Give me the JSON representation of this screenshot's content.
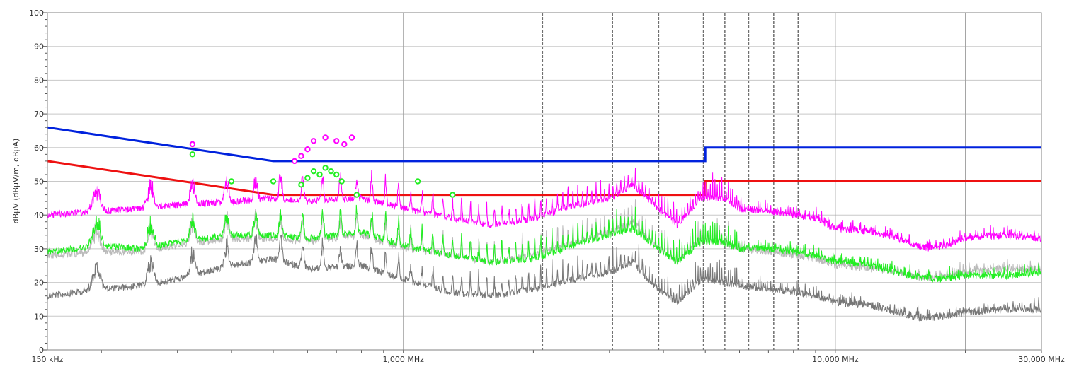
{
  "chart_data": {
    "type": "line",
    "title": "",
    "ylabel": "dBµV (dBµV/m, dBµA)",
    "xlabel": "",
    "x_scale": "log",
    "xlim_mhz": [
      0.15,
      30
    ],
    "ylim": [
      0,
      100
    ],
    "grid": true,
    "legend": "none",
    "y_ticks": [
      0,
      10,
      20,
      30,
      40,
      50,
      60,
      70,
      80,
      90,
      100
    ],
    "x_tick_labels": [
      {
        "mhz": 0.15,
        "label": "150 kHz"
      },
      {
        "mhz": 1,
        "label": "1,000 MHz"
      },
      {
        "mhz": 10,
        "label": "10,000 MHz"
      },
      {
        "mhz": 30,
        "label": "30,000 MHz"
      }
    ],
    "x_solid_grid_mhz": [
      1,
      10,
      20
    ],
    "x_dashed_markers_mhz": [
      2.1,
      3.05,
      3.9,
      4.95,
      5.55,
      6.3,
      7.2,
      8.2
    ],
    "limit_lines": [
      {
        "color": "#0022dd",
        "points": [
          [
            0.15,
            66
          ],
          [
            0.5,
            56
          ],
          [
            5,
            56
          ],
          [
            5,
            60
          ],
          [
            30,
            60
          ]
        ]
      },
      {
        "color": "#ee1111",
        "points": [
          [
            0.15,
            56
          ],
          [
            0.5,
            46
          ],
          [
            5,
            46
          ],
          [
            5,
            50
          ],
          [
            30,
            50
          ]
        ]
      }
    ],
    "series": [
      {
        "color": "#ff00ff",
        "points": [
          [
            0.15,
            41
          ],
          [
            0.2,
            42
          ],
          [
            0.25,
            43
          ],
          [
            0.3,
            44
          ],
          [
            0.4,
            45
          ],
          [
            0.5,
            46
          ],
          [
            0.6,
            45
          ],
          [
            0.8,
            46
          ],
          [
            1.0,
            43
          ],
          [
            1.3,
            40
          ],
          [
            1.6,
            38
          ],
          [
            2.0,
            40
          ],
          [
            2.5,
            44
          ],
          [
            3.0,
            46
          ],
          [
            3.4,
            50
          ],
          [
            3.8,
            44
          ],
          [
            4.3,
            38
          ],
          [
            4.9,
            46
          ],
          [
            5.5,
            46
          ],
          [
            6.0,
            43
          ],
          [
            7.0,
            42
          ],
          [
            8.0,
            41
          ],
          [
            9.0,
            40
          ],
          [
            10.0,
            37
          ],
          [
            12.0,
            36
          ],
          [
            14.0,
            34
          ],
          [
            16.0,
            31
          ],
          [
            18.0,
            32
          ],
          [
            20.0,
            34
          ],
          [
            25.0,
            35
          ],
          [
            30.0,
            34
          ]
        ]
      },
      {
        "color": "#22ee22",
        "points": [
          [
            0.15,
            30
          ],
          [
            0.2,
            32
          ],
          [
            0.25,
            31
          ],
          [
            0.3,
            33
          ],
          [
            0.4,
            35
          ],
          [
            0.5,
            35
          ],
          [
            0.6,
            34
          ],
          [
            0.8,
            36
          ],
          [
            1.0,
            32
          ],
          [
            1.3,
            29
          ],
          [
            1.6,
            27
          ],
          [
            2.0,
            28
          ],
          [
            2.5,
            32
          ],
          [
            3.0,
            35
          ],
          [
            3.4,
            37
          ],
          [
            3.8,
            32
          ],
          [
            4.3,
            27
          ],
          [
            4.9,
            33
          ],
          [
            5.5,
            33
          ],
          [
            6.0,
            31
          ],
          [
            7.0,
            31
          ],
          [
            8.0,
            30
          ],
          [
            9.0,
            29
          ],
          [
            10.0,
            27
          ],
          [
            12.0,
            26
          ],
          [
            14.0,
            24
          ],
          [
            16.0,
            22
          ],
          [
            18.0,
            22
          ],
          [
            20.0,
            23
          ],
          [
            25.0,
            23
          ],
          [
            30.0,
            24
          ]
        ]
      },
      {
        "color": "#bbbbbb",
        "points": [
          [
            0.15,
            29
          ],
          [
            0.2,
            30
          ],
          [
            0.25,
            30
          ],
          [
            0.3,
            32
          ],
          [
            0.4,
            34
          ],
          [
            0.5,
            34
          ],
          [
            0.6,
            33
          ],
          [
            0.8,
            35
          ],
          [
            1.0,
            31
          ],
          [
            1.3,
            29
          ],
          [
            1.6,
            27
          ],
          [
            2.0,
            29
          ],
          [
            2.5,
            33
          ],
          [
            3.0,
            36
          ],
          [
            3.4,
            39
          ],
          [
            3.8,
            32
          ],
          [
            4.3,
            27
          ],
          [
            4.9,
            34
          ],
          [
            5.5,
            33
          ],
          [
            6.0,
            31
          ],
          [
            7.0,
            30
          ],
          [
            8.0,
            29
          ],
          [
            9.0,
            28
          ],
          [
            10.0,
            26
          ],
          [
            12.0,
            25
          ],
          [
            14.0,
            24
          ],
          [
            16.0,
            22
          ],
          [
            18.0,
            23
          ],
          [
            20.0,
            24
          ],
          [
            25.0,
            25
          ],
          [
            30.0,
            25
          ]
        ]
      },
      {
        "color": "#777777",
        "points": [
          [
            0.15,
            17
          ],
          [
            0.2,
            19
          ],
          [
            0.25,
            20
          ],
          [
            0.3,
            22
          ],
          [
            0.4,
            26
          ],
          [
            0.5,
            28
          ],
          [
            0.6,
            25
          ],
          [
            0.8,
            26
          ],
          [
            1.0,
            22
          ],
          [
            1.3,
            18
          ],
          [
            1.6,
            17
          ],
          [
            2.0,
            19
          ],
          [
            2.5,
            22
          ],
          [
            3.0,
            24
          ],
          [
            3.4,
            27
          ],
          [
            3.8,
            20
          ],
          [
            4.3,
            15
          ],
          [
            4.9,
            22
          ],
          [
            5.5,
            21
          ],
          [
            6.0,
            20
          ],
          [
            7.0,
            19
          ],
          [
            8.0,
            18
          ],
          [
            9.0,
            17
          ],
          [
            10.0,
            15
          ],
          [
            12.0,
            14
          ],
          [
            14.0,
            12
          ],
          [
            16.0,
            10
          ],
          [
            18.0,
            11
          ],
          [
            20.0,
            12
          ],
          [
            25.0,
            13
          ],
          [
            30.0,
            13
          ]
        ]
      }
    ],
    "peak_markers": [
      {
        "color": "#ff00ff",
        "points": [
          [
            0.325,
            61
          ],
          [
            0.56,
            56
          ],
          [
            0.58,
            57.5
          ],
          [
            0.6,
            59.5
          ],
          [
            0.62,
            62
          ],
          [
            0.66,
            63
          ],
          [
            0.7,
            62
          ],
          [
            0.73,
            61
          ],
          [
            0.76,
            63
          ]
        ]
      },
      {
        "color": "#22ee22",
        "points": [
          [
            0.325,
            58
          ],
          [
            0.4,
            50
          ],
          [
            0.5,
            50
          ],
          [
            0.58,
            49
          ],
          [
            0.6,
            51
          ],
          [
            0.62,
            53
          ],
          [
            0.64,
            52
          ],
          [
            0.66,
            54
          ],
          [
            0.68,
            53
          ],
          [
            0.7,
            52
          ],
          [
            0.72,
            50
          ],
          [
            0.78,
            46
          ],
          [
            1.08,
            50
          ],
          [
            1.3,
            46
          ]
        ]
      }
    ]
  }
}
